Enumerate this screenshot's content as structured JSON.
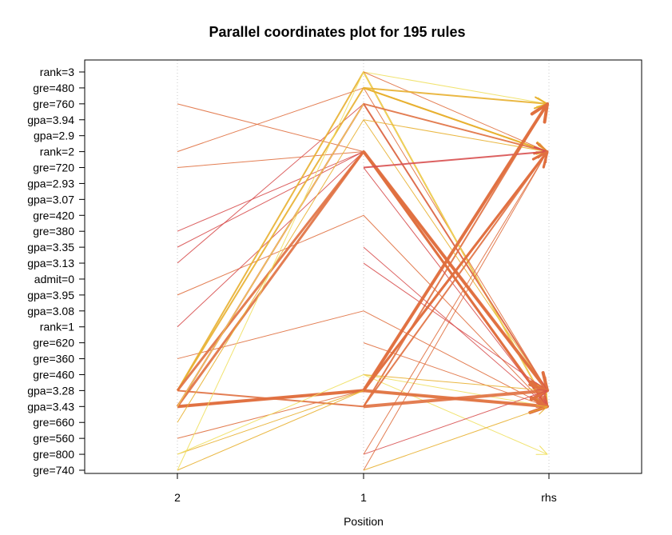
{
  "chart_data": {
    "type": "parallel-coordinates",
    "title": "Parallel coordinates plot for 195 rules",
    "xlabel": "Position",
    "x_categories": [
      "2",
      "1",
      "rhs"
    ],
    "y_items": [
      "rank=3",
      "gre=480",
      "gre=760",
      "gpa=3.94",
      "gpa=2.9",
      "rank=2",
      "gre=720",
      "gpa=2.93",
      "gpa=3.07",
      "gre=420",
      "gre=380",
      "gpa=3.35",
      "gpa=3.13",
      "admit=0",
      "gpa=3.95",
      "gpa=3.08",
      "rank=1",
      "gre=620",
      "gre=360",
      "gre=460",
      "gpa=3.28",
      "gpa=3.43",
      "gre=660",
      "gre=560",
      "gre=800",
      "gre=740"
    ],
    "grid": "vertical-dotted",
    "color_scale": [
      "#f0e060",
      "#e8b030",
      "#e07040",
      "#d85050"
    ],
    "rules": [
      {
        "items": [
          "gre=760",
          "rank=2"
        ],
        "rhs": "gpa=3.43",
        "weight": 1,
        "color": "#e07040"
      },
      {
        "items": [
          "rank=2",
          "gre=480"
        ],
        "rhs": "gpa=3.28",
        "weight": 1,
        "color": "#e07040"
      },
      {
        "items": [
          "gre=720",
          "rank=2"
        ],
        "rhs": "gpa=3.43",
        "weight": 1,
        "color": "#e07040"
      },
      {
        "items": [
          "gre=380",
          "rank=2"
        ],
        "rhs": "gpa=3.28",
        "weight": 1,
        "color": "#d85050"
      },
      {
        "items": [
          "gpa=3.35",
          "rank=2"
        ],
        "rhs": "gpa=3.43",
        "weight": 1,
        "color": "#d85050"
      },
      {
        "items": [
          "gpa=3.13",
          "gre=760"
        ],
        "rhs": "gpa=3.28",
        "weight": 1,
        "color": "#d85050"
      },
      {
        "items": [
          "gpa=3.95",
          "gre=420"
        ],
        "rhs": "gpa=3.43",
        "weight": 1,
        "color": "#e07040"
      },
      {
        "items": [
          "rank=1",
          "rank=2"
        ],
        "rhs": "gpa=3.28",
        "weight": 1,
        "color": "#d85050"
      },
      {
        "items": [
          "gre=360",
          "gpa=3.08"
        ],
        "rhs": "gpa=3.43",
        "weight": 1,
        "color": "#e07040"
      },
      {
        "items": [
          "gpa=3.28",
          "rank=3"
        ],
        "rhs": "gpa=3.43",
        "weight": 2,
        "color": "#e8b030"
      },
      {
        "items": [
          "gpa=3.28",
          "gre=480"
        ],
        "rhs": "rank=2",
        "weight": 2,
        "color": "#e8b030"
      },
      {
        "items": [
          "gpa=3.28",
          "rank=2"
        ],
        "rhs": "gpa=3.43",
        "weight": 3,
        "color": "#e07040"
      },
      {
        "items": [
          "gpa=3.28",
          "gpa=3.43"
        ],
        "rhs": "gre=760",
        "weight": 2,
        "color": "#e07040"
      },
      {
        "items": [
          "gpa=3.43",
          "rank=2"
        ],
        "rhs": "gpa=3.28",
        "weight": 3,
        "color": "#e07040"
      },
      {
        "items": [
          "gpa=3.43",
          "gre=760"
        ],
        "rhs": "gpa=3.28",
        "weight": 2,
        "color": "#e07040"
      },
      {
        "items": [
          "gpa=3.43",
          "gpa=3.28"
        ],
        "rhs": "gre=760",
        "weight": 4,
        "color": "#e07040"
      },
      {
        "items": [
          "gpa=3.43",
          "gpa=3.28"
        ],
        "rhs": "rank=2",
        "weight": 3,
        "color": "#e07040"
      },
      {
        "items": [
          "gpa=3.43",
          "gre=760"
        ],
        "rhs": "gpa=3.28",
        "weight": 1,
        "color": "#f0e060"
      },
      {
        "items": [
          "gre=660",
          "gpa=3.94"
        ],
        "rhs": "gpa=3.28",
        "weight": 1,
        "color": "#e8b030"
      },
      {
        "items": [
          "gre=560",
          "gpa=3.28"
        ],
        "rhs": "gpa=3.43",
        "weight": 1,
        "color": "#e07040"
      },
      {
        "items": [
          "gre=800",
          "gpa=3.28"
        ],
        "rhs": "gpa=3.43",
        "weight": 1,
        "color": "#e8b030"
      },
      {
        "items": [
          "gre=800",
          "gre=460"
        ],
        "rhs": "gpa=3.43",
        "weight": 1,
        "color": "#f0e060"
      },
      {
        "items": [
          "gre=740",
          "gpa=3.28"
        ],
        "rhs": "gpa=3.43",
        "weight": 1,
        "color": "#e8b030"
      },
      {
        "items": [
          "gre=740",
          "rank=3"
        ],
        "rhs": "gpa=3.43",
        "weight": 1,
        "color": "#f0e060"
      }
    ],
    "single_rules": [
      {
        "item": "rank=3",
        "rhs": "gre=760",
        "weight": 1,
        "color": "#f0e060"
      },
      {
        "item": "rank=3",
        "rhs": "rank=2",
        "weight": 1,
        "color": "#e07040"
      },
      {
        "item": "gre=480",
        "rhs": "gre=760",
        "weight": 2,
        "color": "#e8b030"
      },
      {
        "item": "gre=480",
        "rhs": "rank=2",
        "weight": 2,
        "color": "#e8b030"
      },
      {
        "item": "gre=760",
        "rhs": "rank=2",
        "weight": 2,
        "color": "#e07040"
      },
      {
        "item": "gre=760",
        "rhs": "gpa=3.28",
        "weight": 1,
        "color": "#d85050"
      },
      {
        "item": "gpa=3.94",
        "rhs": "rank=2",
        "weight": 1,
        "color": "#e8b030"
      },
      {
        "item": "rank=2",
        "rhs": "gpa=3.28",
        "weight": 4,
        "color": "#e07040"
      },
      {
        "item": "rank=2",
        "rhs": "gpa=3.43",
        "weight": 3,
        "color": "#e07040"
      },
      {
        "item": "gre=720",
        "rhs": "rank=2",
        "weight": 2,
        "color": "#d85050"
      },
      {
        "item": "gre=720",
        "rhs": "gpa=3.43",
        "weight": 1,
        "color": "#d85050"
      },
      {
        "item": "gpa=3.35",
        "rhs": "gpa=3.43",
        "weight": 1,
        "color": "#d85050"
      },
      {
        "item": "gpa=3.13",
        "rhs": "gpa=3.28",
        "weight": 1,
        "color": "#d85050"
      },
      {
        "item": "gre=620",
        "rhs": "gpa=3.43",
        "weight": 1,
        "color": "#e07040"
      },
      {
        "item": "gre=460",
        "rhs": "gpa=3.28",
        "weight": 1,
        "color": "#e8b030"
      },
      {
        "item": "gre=460",
        "rhs": "gre=800",
        "weight": 1,
        "color": "#f0e060"
      },
      {
        "item": "gpa=3.28",
        "rhs": "gre=760",
        "weight": 3,
        "color": "#e07040"
      },
      {
        "item": "gpa=3.28",
        "rhs": "rank=2",
        "weight": 3,
        "color": "#e07040"
      },
      {
        "item": "gpa=3.28",
        "rhs": "gpa=3.43",
        "weight": 4,
        "color": "#e07040"
      },
      {
        "item": "gpa=3.43",
        "rhs": "gpa=3.28",
        "weight": 4,
        "color": "#e07040"
      },
      {
        "item": "gpa=3.43",
        "rhs": "rank=2",
        "weight": 2,
        "color": "#e07040"
      },
      {
        "item": "gre=800",
        "rhs": "gpa=3.28",
        "weight": 1,
        "color": "#d85050"
      },
      {
        "item": "gre=800",
        "rhs": "rank=2",
        "weight": 1,
        "color": "#e07040"
      },
      {
        "item": "gre=740",
        "rhs": "rank=2",
        "weight": 1,
        "color": "#e07040"
      },
      {
        "item": "gre=740",
        "rhs": "gpa=3.43",
        "weight": 1,
        "color": "#e8b030"
      }
    ]
  }
}
